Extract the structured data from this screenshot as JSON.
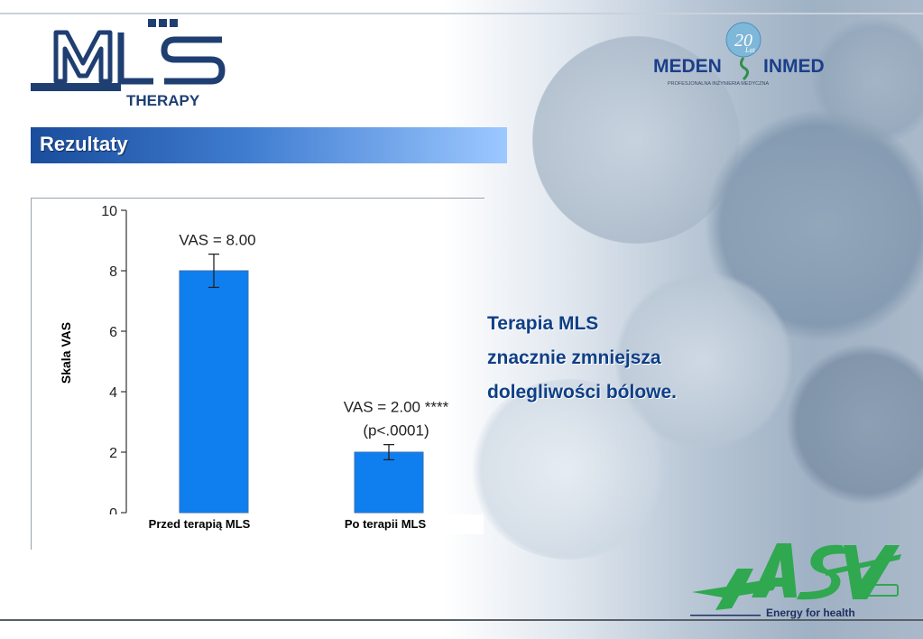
{
  "header": {
    "logo_left_text": "THERAPY",
    "logo_right_badge": "20",
    "logo_right_badge_small": "Lat",
    "logo_right_name_left": "MEDEN",
    "logo_right_name_right": "INMED",
    "logo_right_tagline": "PROFESJONALNA INŻYNIERIA MEDYCZNA"
  },
  "title": "Rezultaty",
  "side_text": [
    "Terapia MLS",
    "znacznie zmniejsza",
    "dolegliwości bólowe."
  ],
  "footer": {
    "slogan": "Energy for health"
  },
  "colors": {
    "bar": "#0f7ff0",
    "title_bar": "#1a4d9c",
    "side_text": "#0f3f86"
  },
  "chart_data": {
    "type": "bar",
    "categories": [
      "Przed terapią MLS",
      "Po terapii MLS"
    ],
    "values": [
      8.0,
      2.0
    ],
    "error": [
      0.55,
      0.25
    ],
    "annotations": [
      [
        "VAS = 8.00"
      ],
      [
        "VAS = 2.00 ****",
        "(p<.0001)"
      ]
    ],
    "ylabel": "Skala VAS",
    "xlabel": "",
    "title": "",
    "ylim": [
      0,
      10
    ],
    "yticks": [
      0,
      2,
      4,
      6,
      8,
      10
    ],
    "grid": false
  }
}
